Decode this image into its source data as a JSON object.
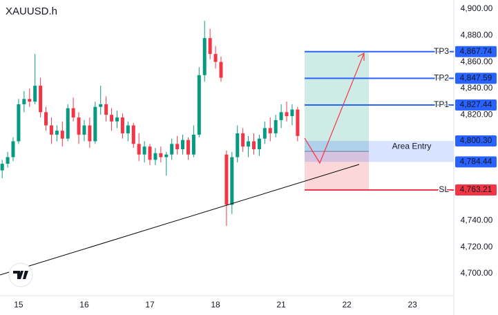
{
  "chart_data": {
    "type": "candlestick",
    "title": "XAUUSD.h",
    "up_color": "#089981",
    "down_color": "#f23645",
    "ylim": [
      4683.3,
      4906.8
    ],
    "yticks": [
      {
        "value": 4900,
        "label": "4,900.00"
      },
      {
        "value": 4880,
        "label": "4,880.00"
      },
      {
        "value": 4860,
        "label": "4,860.00"
      },
      {
        "value": 4840,
        "label": "4,840.00"
      },
      {
        "value": 4820,
        "label": "4,820.00"
      },
      {
        "value": 4740,
        "label": "4,740.00"
      },
      {
        "value": 4720,
        "label": "4,720.00"
      },
      {
        "value": 4700,
        "label": "4,700.00"
      }
    ],
    "xlim": [
      -0.4,
      82.3
    ],
    "xticks": [
      {
        "value": 3,
        "label": "15"
      },
      {
        "value": 15,
        "label": "16"
      },
      {
        "value": 27,
        "label": "17"
      },
      {
        "value": 39,
        "label": "18"
      },
      {
        "value": 51,
        "label": "21"
      },
      {
        "value": 63,
        "label": "22"
      },
      {
        "value": 75,
        "label": "23"
      }
    ],
    "x": [
      0,
      1,
      2,
      3,
      4,
      5,
      6,
      7,
      8,
      9,
      10,
      11,
      12,
      13,
      14,
      15,
      16,
      17,
      18,
      19,
      20,
      21,
      22,
      23,
      24,
      25,
      26,
      27,
      28,
      29,
      30,
      31,
      32,
      33,
      34,
      35,
      36,
      37,
      38,
      39,
      40,
      41,
      42,
      43,
      44,
      45,
      46,
      47,
      48,
      49,
      50,
      51,
      52,
      53,
      54
    ],
    "open": [
      4778,
      4783,
      4788,
      4800,
      4828,
      4832,
      4830,
      4842,
      4822,
      4812,
      4805,
      4808,
      4802,
      4825,
      4818,
      4805,
      4812,
      4800,
      4826,
      4828,
      4820,
      4815,
      4818,
      4806,
      4812,
      4798,
      4790,
      4796,
      4786,
      4791,
      4788,
      4790,
      4798,
      4794,
      4801,
      4790,
      4805,
      4850,
      4878,
      4866,
      4860,
      4790,
      4752,
      4788,
      4806,
      4796,
      4800,
      4794,
      4802,
      4810,
      4806,
      4816,
      4822,
      4819,
      4824
    ],
    "high": [
      4786,
      4792,
      4803,
      4832,
      4838,
      4840,
      4866,
      4848,
      4826,
      4818,
      4812,
      4815,
      4828,
      4833,
      4822,
      4816,
      4818,
      4830,
      4842,
      4834,
      4825,
      4823,
      4821,
      4815,
      4814,
      4806,
      4800,
      4798,
      4795,
      4796,
      4792,
      4802,
      4804,
      4805,
      4803,
      4812,
      4856,
      4891,
      4885,
      4872,
      4864,
      4793,
      4792,
      4812,
      4810,
      4804,
      4806,
      4805,
      4815,
      4818,
      4820,
      4828,
      4830,
      4828,
      4826
    ],
    "low": [
      4772,
      4780,
      4785,
      4798,
      4822,
      4826,
      4828,
      4818,
      4808,
      4798,
      4800,
      4796,
      4800,
      4815,
      4798,
      4800,
      4795,
      4798,
      4820,
      4815,
      4808,
      4810,
      4802,
      4800,
      4795,
      4785,
      4784,
      4782,
      4782,
      4784,
      4774,
      4786,
      4790,
      4790,
      4786,
      4788,
      4803,
      4845,
      4862,
      4855,
      4845,
      4736,
      4745,
      4784,
      4792,
      4788,
      4790,
      4789,
      4798,
      4800,
      4803,
      4810,
      4815,
      4812,
      4800
    ],
    "close": [
      4783,
      4788,
      4800,
      4828,
      4832,
      4830,
      4842,
      4822,
      4812,
      4805,
      4808,
      4802,
      4825,
      4818,
      4805,
      4812,
      4800,
      4826,
      4828,
      4820,
      4815,
      4818,
      4806,
      4812,
      4798,
      4790,
      4796,
      4786,
      4791,
      4788,
      4790,
      4798,
      4794,
      4801,
      4790,
      4805,
      4850,
      4878,
      4866,
      4860,
      4848,
      4752,
      4788,
      4806,
      4796,
      4800,
      4794,
      4802,
      4810,
      4806,
      4816,
      4822,
      4819,
      4824,
      4804
    ],
    "levels": [
      {
        "name": "TP3",
        "value": 4867.74,
        "label": "4,867.74",
        "color": "#2962ff"
      },
      {
        "name": "TP2",
        "value": 4847.59,
        "label": "4,847.59",
        "color": "#2962ff"
      },
      {
        "name": "TP1",
        "value": 4827.44,
        "label": "4,827.44",
        "color": "#2962ff"
      },
      {
        "name": "SL",
        "value": 4763.21,
        "label": "4,763.21",
        "color": "#f23645"
      }
    ],
    "zone": {
      "name": "Area Entry",
      "top": {
        "value": 4800.3,
        "label": "4,800.30"
      },
      "bottom": {
        "value": 4784.44,
        "label": "4,784.44"
      },
      "color": "#2962ff"
    }
  }
}
